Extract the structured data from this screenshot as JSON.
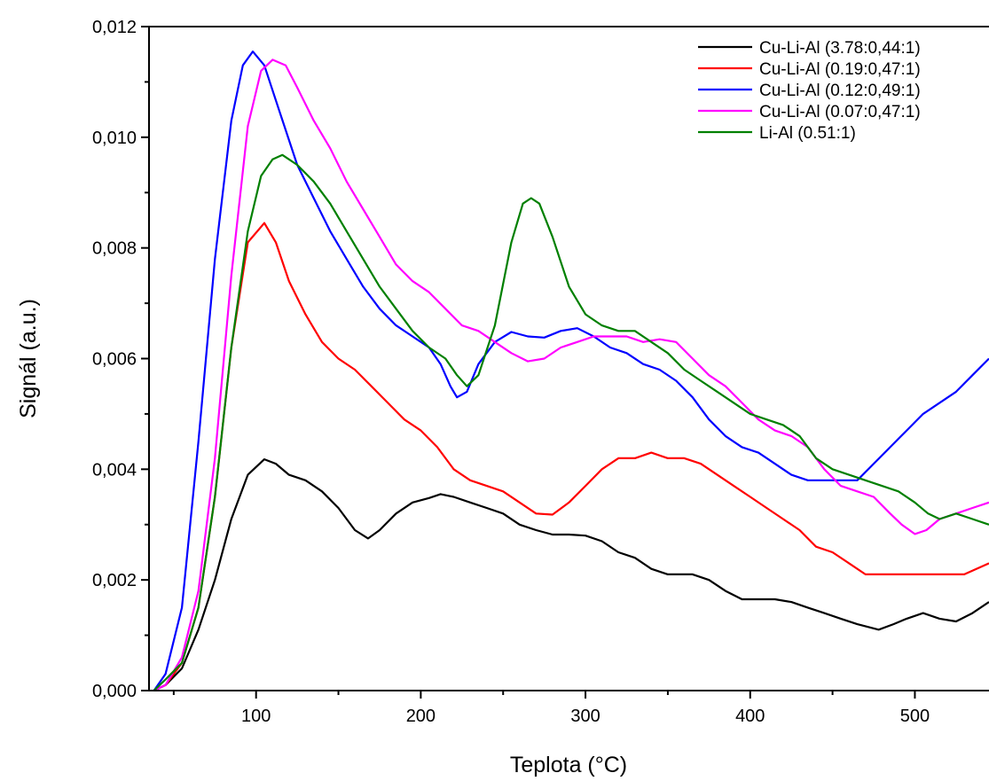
{
  "chart_data": {
    "type": "line",
    "title": "",
    "xlabel": "Teplota (°C)",
    "ylabel": "Signál (a.u.)",
    "xlim": [
      35,
      545
    ],
    "ylim": [
      0,
      0.012
    ],
    "x_ticks": [
      100,
      200,
      300,
      400,
      500
    ],
    "x_tick_labels": [
      "100",
      "200",
      "300",
      "400",
      "500"
    ],
    "y_ticks": [
      0,
      0.002,
      0.004,
      0.006,
      0.008,
      0.01,
      0.012
    ],
    "y_tick_labels": [
      "0,000",
      "0,002",
      "0,004",
      "0,006",
      "0,008",
      "0,010",
      "0,012"
    ],
    "grid": false,
    "legend_position": "top-right",
    "series": [
      {
        "name": "Cu-Li-Al (3.78:0,44:1)",
        "color": "#000000",
        "points": [
          [
            38,
            0
          ],
          [
            45,
            0.0001
          ],
          [
            55,
            0.0004
          ],
          [
            65,
            0.0011
          ],
          [
            75,
            0.002
          ],
          [
            85,
            0.0031
          ],
          [
            95,
            0.0039
          ],
          [
            105,
            0.00418
          ],
          [
            112,
            0.0041
          ],
          [
            120,
            0.0039
          ],
          [
            130,
            0.0038
          ],
          [
            140,
            0.0036
          ],
          [
            150,
            0.0033
          ],
          [
            160,
            0.0029
          ],
          [
            168,
            0.00275
          ],
          [
            175,
            0.0029
          ],
          [
            185,
            0.0032
          ],
          [
            195,
            0.0034
          ],
          [
            205,
            0.00348
          ],
          [
            212,
            0.00355
          ],
          [
            220,
            0.0035
          ],
          [
            230,
            0.0034
          ],
          [
            240,
            0.0033
          ],
          [
            250,
            0.0032
          ],
          [
            260,
            0.003
          ],
          [
            270,
            0.0029
          ],
          [
            280,
            0.00282
          ],
          [
            290,
            0.00282
          ],
          [
            300,
            0.0028
          ],
          [
            310,
            0.0027
          ],
          [
            320,
            0.0025
          ],
          [
            330,
            0.0024
          ],
          [
            340,
            0.0022
          ],
          [
            350,
            0.0021
          ],
          [
            365,
            0.0021
          ],
          [
            375,
            0.002
          ],
          [
            385,
            0.0018
          ],
          [
            395,
            0.00165
          ],
          [
            405,
            0.00165
          ],
          [
            415,
            0.00165
          ],
          [
            425,
            0.0016
          ],
          [
            435,
            0.0015
          ],
          [
            445,
            0.0014
          ],
          [
            455,
            0.0013
          ],
          [
            465,
            0.0012
          ],
          [
            478,
            0.0011
          ],
          [
            487,
            0.0012
          ],
          [
            495,
            0.0013
          ],
          [
            505,
            0.0014
          ],
          [
            515,
            0.0013
          ],
          [
            525,
            0.00125
          ],
          [
            535,
            0.0014
          ],
          [
            545,
            0.0016
          ]
        ]
      },
      {
        "name": "Cu-Li-Al (0.19:0,47:1)",
        "color": "#ff0000",
        "points": [
          [
            38,
            0
          ],
          [
            45,
            0.0001
          ],
          [
            55,
            0.0005
          ],
          [
            65,
            0.0015
          ],
          [
            75,
            0.0035
          ],
          [
            85,
            0.0062
          ],
          [
            95,
            0.0081
          ],
          [
            105,
            0.00845
          ],
          [
            112,
            0.0081
          ],
          [
            120,
            0.0074
          ],
          [
            130,
            0.0068
          ],
          [
            140,
            0.0063
          ],
          [
            150,
            0.006
          ],
          [
            160,
            0.0058
          ],
          [
            170,
            0.0055
          ],
          [
            180,
            0.0052
          ],
          [
            190,
            0.0049
          ],
          [
            200,
            0.0047
          ],
          [
            210,
            0.0044
          ],
          [
            220,
            0.004
          ],
          [
            230,
            0.0038
          ],
          [
            240,
            0.0037
          ],
          [
            250,
            0.0036
          ],
          [
            260,
            0.0034
          ],
          [
            270,
            0.0032
          ],
          [
            280,
            0.00318
          ],
          [
            290,
            0.0034
          ],
          [
            300,
            0.0037
          ],
          [
            310,
            0.004
          ],
          [
            320,
            0.0042
          ],
          [
            330,
            0.0042
          ],
          [
            340,
            0.0043
          ],
          [
            350,
            0.0042
          ],
          [
            360,
            0.0042
          ],
          [
            370,
            0.0041
          ],
          [
            380,
            0.0039
          ],
          [
            390,
            0.0037
          ],
          [
            400,
            0.0035
          ],
          [
            410,
            0.0033
          ],
          [
            420,
            0.0031
          ],
          [
            430,
            0.0029
          ],
          [
            440,
            0.0026
          ],
          [
            450,
            0.0025
          ],
          [
            460,
            0.0023
          ],
          [
            470,
            0.0021
          ],
          [
            480,
            0.0021
          ],
          [
            490,
            0.0021
          ],
          [
            500,
            0.0021
          ],
          [
            510,
            0.0021
          ],
          [
            520,
            0.0021
          ],
          [
            530,
            0.0021
          ],
          [
            545,
            0.0023
          ]
        ]
      },
      {
        "name": "Cu-Li-Al (0.12:0,49:1)",
        "color": "#0000ff",
        "points": [
          [
            38,
            0
          ],
          [
            45,
            0.0003
          ],
          [
            55,
            0.0015
          ],
          [
            65,
            0.0045
          ],
          [
            75,
            0.0078
          ],
          [
            85,
            0.0103
          ],
          [
            92,
            0.0113
          ],
          [
            98,
            0.01155
          ],
          [
            105,
            0.0113
          ],
          [
            115,
            0.0104
          ],
          [
            125,
            0.0095
          ],
          [
            135,
            0.0089
          ],
          [
            145,
            0.0083
          ],
          [
            155,
            0.0078
          ],
          [
            165,
            0.0073
          ],
          [
            175,
            0.0069
          ],
          [
            185,
            0.0066
          ],
          [
            195,
            0.0064
          ],
          [
            205,
            0.0062
          ],
          [
            212,
            0.0059
          ],
          [
            218,
            0.0055
          ],
          [
            222,
            0.0053
          ],
          [
            228,
            0.0054
          ],
          [
            235,
            0.0059
          ],
          [
            245,
            0.0063
          ],
          [
            255,
            0.00648
          ],
          [
            265,
            0.0064
          ],
          [
            275,
            0.00638
          ],
          [
            285,
            0.0065
          ],
          [
            295,
            0.00655
          ],
          [
            305,
            0.0064
          ],
          [
            315,
            0.0062
          ],
          [
            325,
            0.0061
          ],
          [
            335,
            0.0059
          ],
          [
            345,
            0.0058
          ],
          [
            355,
            0.0056
          ],
          [
            365,
            0.0053
          ],
          [
            375,
            0.0049
          ],
          [
            385,
            0.0046
          ],
          [
            395,
            0.0044
          ],
          [
            405,
            0.0043
          ],
          [
            415,
            0.0041
          ],
          [
            425,
            0.0039
          ],
          [
            435,
            0.0038
          ],
          [
            445,
            0.0038
          ],
          [
            455,
            0.0038
          ],
          [
            465,
            0.0038
          ],
          [
            475,
            0.0041
          ],
          [
            485,
            0.0044
          ],
          [
            495,
            0.0047
          ],
          [
            505,
            0.005
          ],
          [
            515,
            0.0052
          ],
          [
            525,
            0.0054
          ],
          [
            535,
            0.0057
          ],
          [
            545,
            0.006
          ]
        ]
      },
      {
        "name": "Cu-Li-Al (0.07:0,47:1)",
        "color": "#ff00ff",
        "points": [
          [
            38,
            0
          ],
          [
            45,
            0.0001
          ],
          [
            55,
            0.0006
          ],
          [
            65,
            0.0018
          ],
          [
            75,
            0.0042
          ],
          [
            85,
            0.0075
          ],
          [
            95,
            0.0102
          ],
          [
            103,
            0.0112
          ],
          [
            110,
            0.0114
          ],
          [
            118,
            0.0113
          ],
          [
            125,
            0.0109
          ],
          [
            135,
            0.0103
          ],
          [
            145,
            0.0098
          ],
          [
            155,
            0.0092
          ],
          [
            165,
            0.0087
          ],
          [
            175,
            0.0082
          ],
          [
            185,
            0.0077
          ],
          [
            195,
            0.0074
          ],
          [
            205,
            0.0072
          ],
          [
            215,
            0.0069
          ],
          [
            225,
            0.0066
          ],
          [
            235,
            0.0065
          ],
          [
            245,
            0.0063
          ],
          [
            255,
            0.0061
          ],
          [
            265,
            0.00595
          ],
          [
            275,
            0.006
          ],
          [
            285,
            0.0062
          ],
          [
            295,
            0.0063
          ],
          [
            305,
            0.0064
          ],
          [
            315,
            0.0064
          ],
          [
            325,
            0.0064
          ],
          [
            335,
            0.0063
          ],
          [
            345,
            0.00635
          ],
          [
            355,
            0.0063
          ],
          [
            365,
            0.006
          ],
          [
            375,
            0.0057
          ],
          [
            385,
            0.0055
          ],
          [
            395,
            0.0052
          ],
          [
            405,
            0.0049
          ],
          [
            415,
            0.0047
          ],
          [
            425,
            0.0046
          ],
          [
            435,
            0.0044
          ],
          [
            445,
            0.004
          ],
          [
            455,
            0.0037
          ],
          [
            465,
            0.0036
          ],
          [
            475,
            0.0035
          ],
          [
            485,
            0.0032
          ],
          [
            492,
            0.003
          ],
          [
            500,
            0.00283
          ],
          [
            507,
            0.0029
          ],
          [
            515,
            0.0031
          ],
          [
            525,
            0.0032
          ],
          [
            535,
            0.0033
          ],
          [
            545,
            0.0034
          ]
        ]
      },
      {
        "name": "Li-Al (0.51:1)",
        "color": "#008000",
        "points": [
          [
            38,
            0
          ],
          [
            45,
            0.0002
          ],
          [
            55,
            0.0005
          ],
          [
            65,
            0.0015
          ],
          [
            75,
            0.0035
          ],
          [
            85,
            0.0062
          ],
          [
            95,
            0.0083
          ],
          [
            103,
            0.0093
          ],
          [
            110,
            0.0096
          ],
          [
            116,
            0.00968
          ],
          [
            125,
            0.0095
          ],
          [
            135,
            0.0092
          ],
          [
            145,
            0.0088
          ],
          [
            155,
            0.0083
          ],
          [
            165,
            0.0078
          ],
          [
            175,
            0.0073
          ],
          [
            185,
            0.0069
          ],
          [
            195,
            0.0065
          ],
          [
            205,
            0.0062
          ],
          [
            215,
            0.006
          ],
          [
            222,
            0.0057
          ],
          [
            228,
            0.0055
          ],
          [
            235,
            0.0057
          ],
          [
            245,
            0.0066
          ],
          [
            255,
            0.0081
          ],
          [
            262,
            0.0088
          ],
          [
            267,
            0.0089
          ],
          [
            272,
            0.0088
          ],
          [
            280,
            0.0082
          ],
          [
            290,
            0.0073
          ],
          [
            300,
            0.0068
          ],
          [
            310,
            0.0066
          ],
          [
            320,
            0.0065
          ],
          [
            330,
            0.0065
          ],
          [
            340,
            0.0063
          ],
          [
            350,
            0.0061
          ],
          [
            360,
            0.0058
          ],
          [
            370,
            0.0056
          ],
          [
            380,
            0.0054
          ],
          [
            390,
            0.0052
          ],
          [
            400,
            0.005
          ],
          [
            410,
            0.0049
          ],
          [
            420,
            0.0048
          ],
          [
            430,
            0.0046
          ],
          [
            440,
            0.0042
          ],
          [
            450,
            0.004
          ],
          [
            460,
            0.0039
          ],
          [
            470,
            0.0038
          ],
          [
            480,
            0.0037
          ],
          [
            490,
            0.0036
          ],
          [
            500,
            0.0034
          ],
          [
            508,
            0.0032
          ],
          [
            515,
            0.0031
          ],
          [
            525,
            0.0032
          ],
          [
            535,
            0.0031
          ],
          [
            545,
            0.003
          ]
        ]
      }
    ]
  }
}
